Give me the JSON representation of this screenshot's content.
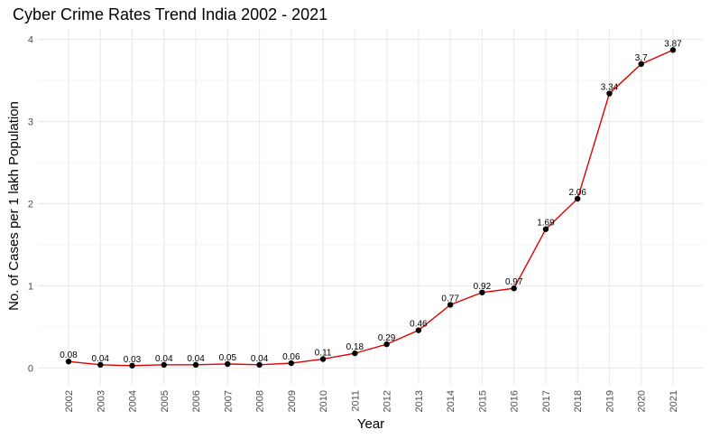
{
  "chart_data": {
    "type": "line",
    "title": "Cyber Crime Rates Trend India 2002 - 2021",
    "xlabel": "Year",
    "ylabel": "No. of Cases per 1 lakh Population",
    "categories": [
      "2002",
      "2003",
      "2004",
      "2005",
      "2006",
      "2007",
      "2008",
      "2009",
      "2010",
      "2011",
      "2012",
      "2013",
      "2014",
      "2015",
      "2016",
      "2017",
      "2018",
      "2019",
      "2020",
      "2021"
    ],
    "values": [
      0.08,
      0.04,
      0.03,
      0.04,
      0.04,
      0.05,
      0.04,
      0.06,
      0.11,
      0.18,
      0.29,
      0.46,
      0.77,
      0.92,
      0.97,
      1.69,
      2.06,
      3.34,
      3.7,
      3.87
    ],
    "data_labels": [
      "0.08",
      "0.04",
      "0.03",
      "0.04",
      "0.04",
      "0.05",
      "0.04",
      "0.06",
      "0.11",
      "0.18",
      "0.29",
      "0.46",
      "0.77",
      "0.92",
      "0.97",
      "1.69",
      "2.06",
      "3.34",
      "3.7",
      "3.87"
    ],
    "y_ticks": [
      "0",
      "1",
      "2",
      "3",
      "4"
    ],
    "ylim": [
      -0.2,
      4.1
    ],
    "grid": true,
    "line_color": "#e00000",
    "point_color": "#000000",
    "grid_color": "#ebebeb"
  }
}
